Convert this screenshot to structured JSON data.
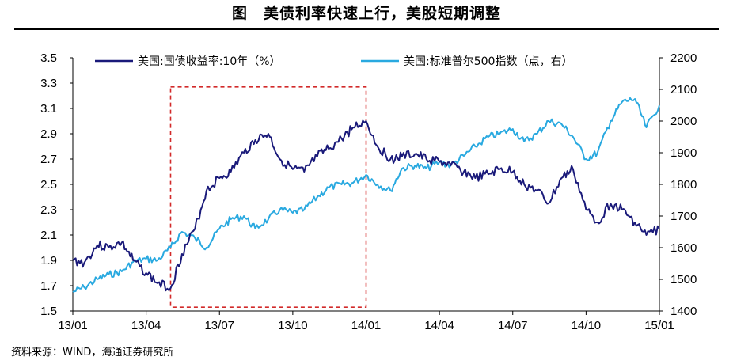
{
  "figure": {
    "title": "图　美债利率快速上行，美股短期调整",
    "source": "资料来源：WIND，海通证券研究所"
  },
  "colors": {
    "yield": "#1a1a7a",
    "sp500": "#29a9e0",
    "highlight": "#d22a2a"
  },
  "chart_data": {
    "type": "line",
    "x_tick_labels": [
      "13/01",
      "13/04",
      "13/07",
      "13/10",
      "14/01",
      "14/04",
      "14/07",
      "14/10",
      "15/01"
    ],
    "xlim": [
      "2013-01",
      "2015-01"
    ],
    "y_left": {
      "ylim": [
        1.5,
        3.5
      ],
      "ticks": [
        "1.5",
        "1.7",
        "1.9",
        "2.1",
        "2.3",
        "2.5",
        "2.7",
        "2.9",
        "3.1",
        "3.3",
        "3.5"
      ]
    },
    "y_right": {
      "ylim": [
        1400,
        2200
      ],
      "ticks": [
        "1400",
        "1500",
        "1600",
        "1700",
        "1800",
        "1900",
        "2000",
        "2100",
        "2200"
      ]
    },
    "grid": false,
    "legend_position": "top",
    "highlight_box": {
      "x": [
        "2013-05",
        "2014-01"
      ],
      "y_left": [
        1.53,
        3.27
      ]
    },
    "series": [
      {
        "name": "美国:国债收益率:10年（%）",
        "axis": "left",
        "x": [
          "2013-01",
          "2013-01-15",
          "2013-02",
          "2013-02-15",
          "2013-03",
          "2013-03-15",
          "2013-04",
          "2013-04-15",
          "2013-05",
          "2013-05-15",
          "2013-06",
          "2013-06-15",
          "2013-07",
          "2013-07-15",
          "2013-08",
          "2013-08-15",
          "2013-09",
          "2013-09-15",
          "2013-10",
          "2013-10-15",
          "2013-11",
          "2013-11-15",
          "2013-12",
          "2013-12-15",
          "2014-01",
          "2014-01-15",
          "2014-02",
          "2014-02-15",
          "2014-03",
          "2014-03-15",
          "2014-04",
          "2014-04-15",
          "2014-05",
          "2014-05-15",
          "2014-06",
          "2014-06-15",
          "2014-07",
          "2014-07-15",
          "2014-08",
          "2014-08-15",
          "2014-09",
          "2014-09-15",
          "2014-10",
          "2014-10-15",
          "2014-11",
          "2014-11-15",
          "2014-12",
          "2014-12-15",
          "2015-01"
        ],
        "values": [
          1.9,
          1.88,
          2.02,
          2.0,
          2.04,
          1.9,
          1.8,
          1.72,
          1.68,
          1.95,
          2.15,
          2.45,
          2.55,
          2.6,
          2.75,
          2.85,
          2.9,
          2.7,
          2.62,
          2.6,
          2.72,
          2.78,
          2.86,
          2.95,
          3.0,
          2.8,
          2.7,
          2.72,
          2.74,
          2.7,
          2.68,
          2.65,
          2.6,
          2.55,
          2.58,
          2.62,
          2.6,
          2.5,
          2.45,
          2.35,
          2.55,
          2.62,
          2.3,
          2.2,
          2.35,
          2.3,
          2.2,
          2.1,
          2.15
        ]
      },
      {
        "name": "美国:标准普尔500指数（点，右）",
        "axis": "right",
        "x": [
          "2013-01",
          "2013-01-15",
          "2013-02",
          "2013-02-15",
          "2013-03",
          "2013-03-15",
          "2013-04",
          "2013-04-15",
          "2013-05",
          "2013-05-15",
          "2013-06",
          "2013-06-15",
          "2013-07",
          "2013-07-15",
          "2013-08",
          "2013-08-15",
          "2013-09",
          "2013-09-15",
          "2013-10",
          "2013-10-15",
          "2013-11",
          "2013-11-15",
          "2013-12",
          "2013-12-15",
          "2014-01",
          "2014-01-15",
          "2014-02",
          "2014-02-15",
          "2014-03",
          "2014-03-15",
          "2014-04",
          "2014-04-15",
          "2014-05",
          "2014-05-15",
          "2014-06",
          "2014-06-15",
          "2014-07",
          "2014-07-15",
          "2014-08",
          "2014-08-15",
          "2014-09",
          "2014-09-15",
          "2014-10",
          "2014-10-15",
          "2014-11",
          "2014-11-15",
          "2014-12",
          "2014-12-15",
          "2015-01"
        ],
        "values": [
          1460,
          1475,
          1500,
          1515,
          1525,
          1555,
          1565,
          1560,
          1600,
          1650,
          1630,
          1600,
          1660,
          1690,
          1700,
          1660,
          1690,
          1720,
          1710,
          1720,
          1760,
          1790,
          1800,
          1805,
          1830,
          1800,
          1780,
          1850,
          1860,
          1850,
          1870,
          1860,
          1890,
          1920,
          1950,
          1960,
          1975,
          1935,
          1960,
          2000,
          1990,
          1950,
          1880,
          1900,
          2000,
          2060,
          2070,
          1980,
          2050
        ]
      }
    ]
  }
}
